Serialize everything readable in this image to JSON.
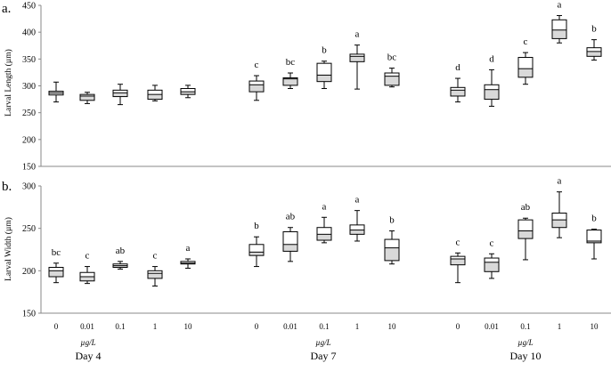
{
  "chart_data": [
    {
      "type": "box",
      "panel_label": "a.",
      "ylabel": "Larval Length (µm)",
      "ylim": [
        150,
        450
      ],
      "yticks": [
        150,
        200,
        250,
        300,
        350,
        400,
        450
      ],
      "groups": [
        "Day 4",
        "Day 7",
        "Day 10"
      ],
      "categories": [
        "0",
        "0.01",
        "0.1",
        "1",
        "10"
      ],
      "boxes": [
        [
          {
            "min": 270,
            "q1": 283,
            "median": 287,
            "q3": 290,
            "max": 307,
            "letter": ""
          },
          {
            "min": 267,
            "q1": 273,
            "median": 281,
            "q3": 284,
            "max": 288,
            "letter": ""
          },
          {
            "min": 265,
            "q1": 280,
            "median": 287,
            "q3": 292,
            "max": 303,
            "letter": ""
          },
          {
            "min": 272,
            "q1": 275,
            "median": 284,
            "q3": 292,
            "max": 301,
            "letter": ""
          },
          {
            "min": 278,
            "q1": 284,
            "median": 289,
            "q3": 295,
            "max": 301,
            "letter": ""
          }
        ],
        [
          {
            "min": 273,
            "q1": 289,
            "median": 302,
            "q3": 309,
            "max": 319,
            "letter": "c"
          },
          {
            "min": 295,
            "q1": 301,
            "median": 313,
            "q3": 315,
            "max": 324,
            "letter": "bc"
          },
          {
            "min": 295,
            "q1": 308,
            "median": 320,
            "q3": 342,
            "max": 346,
            "letter": "b"
          },
          {
            "min": 294,
            "q1": 345,
            "median": 355,
            "q3": 359,
            "max": 376,
            "letter": "a"
          },
          {
            "min": 298,
            "q1": 301,
            "median": 318,
            "q3": 324,
            "max": 333,
            "letter": "bc"
          }
        ],
        [
          {
            "min": 270,
            "q1": 281,
            "median": 292,
            "q3": 297,
            "max": 314,
            "letter": "d"
          },
          {
            "min": 262,
            "q1": 275,
            "median": 293,
            "q3": 302,
            "max": 330,
            "letter": "d"
          },
          {
            "min": 303,
            "q1": 316,
            "median": 332,
            "q3": 353,
            "max": 362,
            "letter": "c"
          },
          {
            "min": 380,
            "q1": 388,
            "median": 404,
            "q3": 423,
            "max": 431,
            "letter": "a"
          },
          {
            "min": 348,
            "q1": 355,
            "median": 364,
            "q3": 371,
            "max": 386,
            "letter": "b"
          }
        ]
      ]
    },
    {
      "type": "box",
      "panel_label": "b.",
      "ylabel": "Larval Width (µm)",
      "ylim": [
        150,
        300
      ],
      "yticks": [
        150,
        200,
        250,
        300
      ],
      "groups": [
        "Day 4",
        "Day 7",
        "Day 10"
      ],
      "categories": [
        "0",
        "0.01",
        "0.1",
        "1",
        "10"
      ],
      "xlabel": "µg/L",
      "boxes": [
        [
          {
            "min": 186,
            "q1": 193,
            "median": 200,
            "q3": 204,
            "max": 209,
            "letter": "bc"
          },
          {
            "min": 185,
            "q1": 188,
            "median": 193,
            "q3": 198,
            "max": 205,
            "letter": "c"
          },
          {
            "min": 202,
            "q1": 204,
            "median": 206,
            "q3": 208,
            "max": 211,
            "letter": "ab"
          },
          {
            "min": 182,
            "q1": 191,
            "median": 197,
            "q3": 200,
            "max": 205,
            "letter": "c"
          },
          {
            "min": 203,
            "q1": 208,
            "median": 209,
            "q3": 211,
            "max": 214,
            "letter": "a"
          }
        ],
        [
          {
            "min": 205,
            "q1": 218,
            "median": 222,
            "q3": 231,
            "max": 240,
            "letter": "b"
          },
          {
            "min": 211,
            "q1": 223,
            "median": 231,
            "q3": 246,
            "max": 251,
            "letter": "ab"
          },
          {
            "min": 233,
            "q1": 236,
            "median": 243,
            "q3": 251,
            "max": 263,
            "letter": "a"
          },
          {
            "min": 235,
            "q1": 243,
            "median": 248,
            "q3": 254,
            "max": 271,
            "letter": "a"
          },
          {
            "min": 208,
            "q1": 212,
            "median": 227,
            "q3": 237,
            "max": 247,
            "letter": "b"
          }
        ],
        [
          {
            "min": 186,
            "q1": 207,
            "median": 214,
            "q3": 217,
            "max": 221,
            "letter": "c"
          },
          {
            "min": 191,
            "q1": 199,
            "median": 210,
            "q3": 215,
            "max": 220,
            "letter": "c"
          },
          {
            "min": 213,
            "q1": 238,
            "median": 247,
            "q3": 260,
            "max": 262,
            "letter": "ab"
          },
          {
            "min": 239,
            "q1": 251,
            "median": 260,
            "q3": 268,
            "max": 293,
            "letter": "a"
          },
          {
            "min": 214,
            "q1": 233,
            "median": 235,
            "q3": 248,
            "max": 249,
            "letter": "b"
          }
        ]
      ]
    }
  ]
}
